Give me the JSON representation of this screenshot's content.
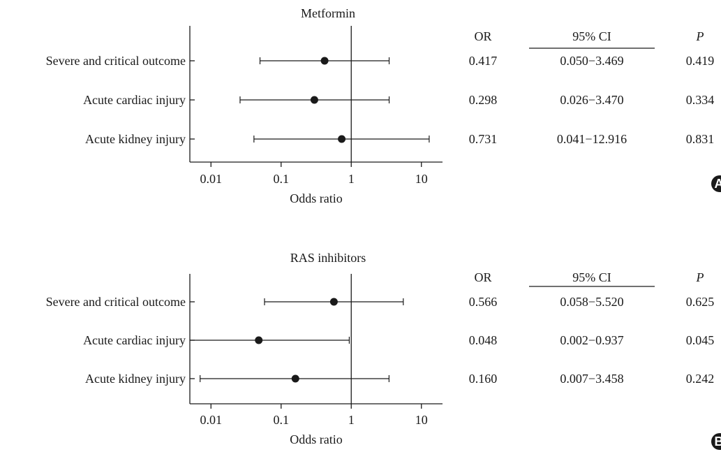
{
  "chart_data": [
    {
      "type": "forest",
      "panel_label": "A",
      "title": "Metformin",
      "xlabel": "Odds ratio",
      "x_scale": "log",
      "xlim": [
        0.005,
        20
      ],
      "xticks": [
        0.01,
        0.1,
        1,
        10
      ],
      "xtick_labels": [
        "0.01",
        "0.1",
        "1",
        "10"
      ],
      "reference_line": 1,
      "table_headers": {
        "or": "OR",
        "ci": "95% CI",
        "p": "P"
      },
      "rows": [
        {
          "label": "Severe and critical outcome",
          "or": 0.417,
          "ci_low": 0.05,
          "ci_high": 3.469,
          "or_text": "0.417",
          "ci_text": "0.050−3.469",
          "p_text": "0.419"
        },
        {
          "label": "Acute cardiac injury",
          "or": 0.298,
          "ci_low": 0.026,
          "ci_high": 3.47,
          "or_text": "0.298",
          "ci_text": "0.026−3.470",
          "p_text": "0.334"
        },
        {
          "label": "Acute kidney injury",
          "or": 0.731,
          "ci_low": 0.041,
          "ci_high": 12.916,
          "or_text": "0.731",
          "ci_text": "0.041−12.916",
          "p_text": "0.831"
        }
      ]
    },
    {
      "type": "forest",
      "panel_label": "B",
      "title": "RAS inhibitors",
      "xlabel": "Odds ratio",
      "x_scale": "log",
      "xlim": [
        0.005,
        20
      ],
      "xticks": [
        0.01,
        0.1,
        1,
        10
      ],
      "xtick_labels": [
        "0.01",
        "0.1",
        "1",
        "10"
      ],
      "reference_line": 1,
      "table_headers": {
        "or": "OR",
        "ci": "95% CI",
        "p": "P"
      },
      "rows": [
        {
          "label": "Severe and critical outcome",
          "or": 0.566,
          "ci_low": 0.058,
          "ci_high": 5.52,
          "or_text": "0.566",
          "ci_text": "0.058−5.520",
          "p_text": "0.625"
        },
        {
          "label": "Acute cardiac injury",
          "or": 0.048,
          "ci_low": 0.002,
          "ci_high": 0.937,
          "or_text": "0.048",
          "ci_text": "0.002−0.937",
          "p_text": "0.045"
        },
        {
          "label": "Acute kidney injury",
          "or": 0.16,
          "ci_low": 0.007,
          "ci_high": 3.458,
          "or_text": "0.160",
          "ci_text": "0.007−3.458",
          "p_text": "0.242"
        }
      ]
    }
  ]
}
